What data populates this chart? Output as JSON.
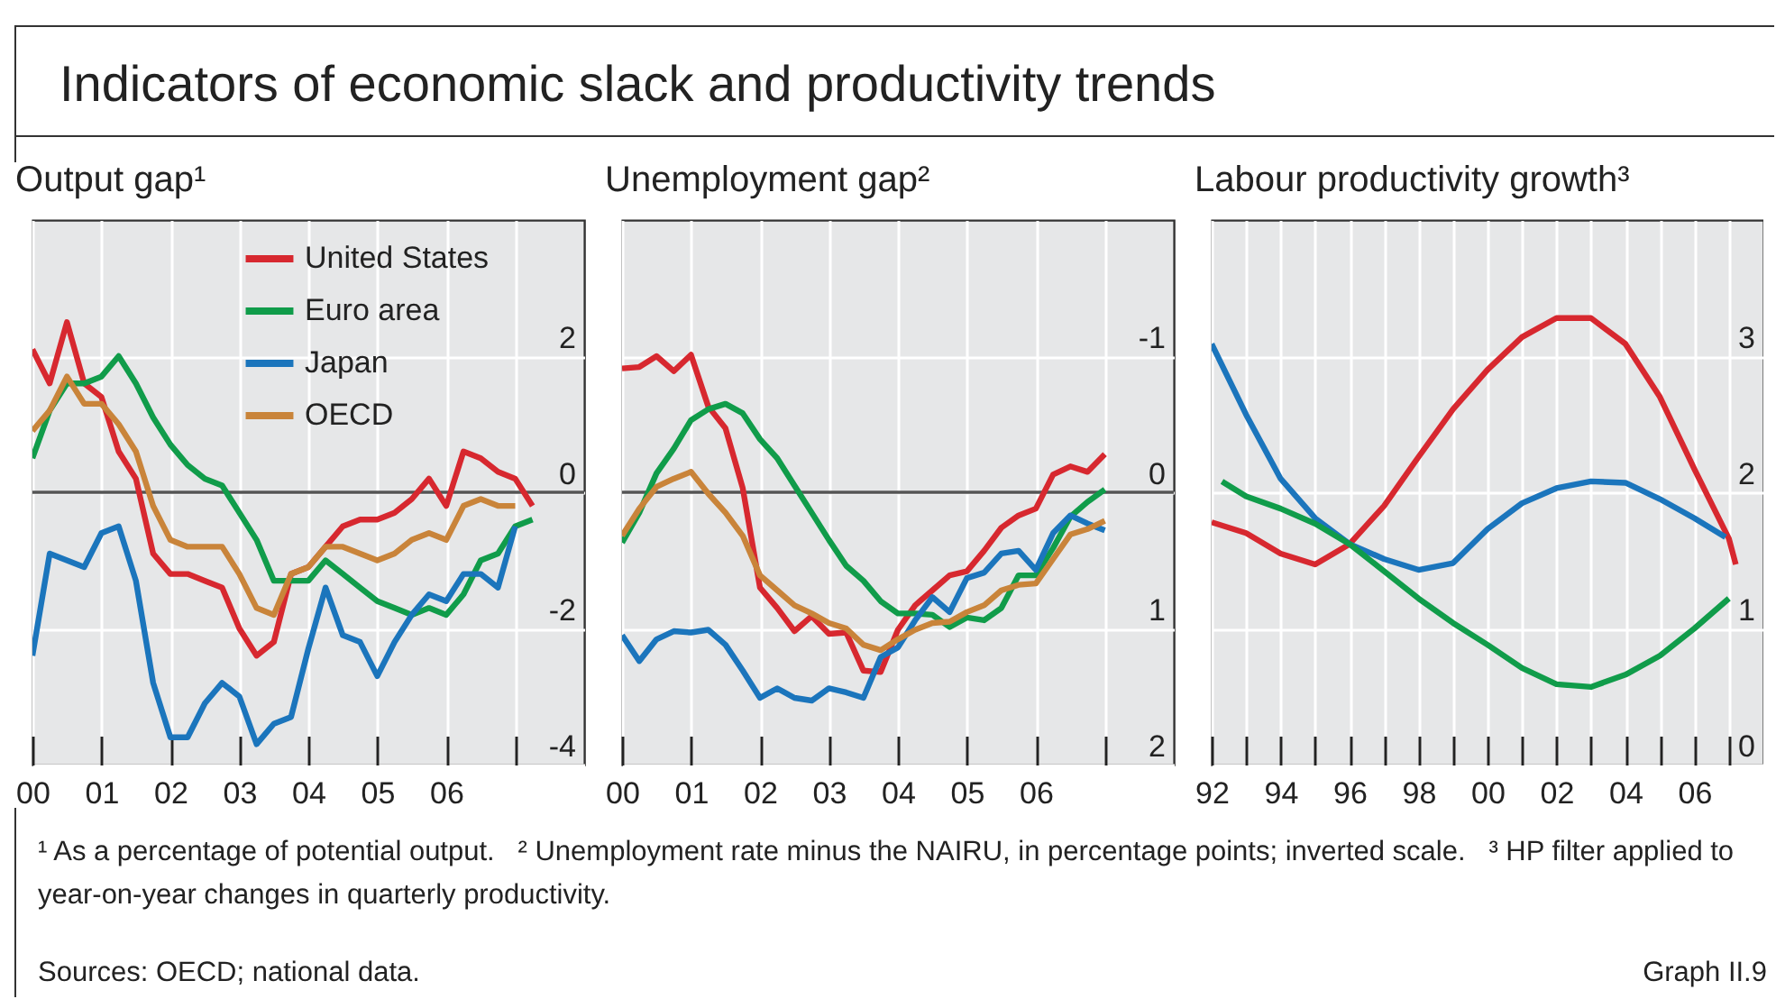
{
  "chart_data": [
    {
      "type": "other",
      "title": "Indicators of economic slack and productivity trends",
      "annotations": [
        "¹ As a percentage of potential output.",
        "² Unemployment rate minus the NAIRU, in percentage points; inverted scale.",
        "³ HP filter applied to year-on-year changes in quarterly productivity.",
        "Sources: OECD; national data.",
        "Graph II.9"
      ]
    },
    {
      "type": "line",
      "title": "Output gap¹",
      "x": [
        2000,
        2000.25,
        2000.5,
        2000.75,
        2001,
        2001.25,
        2001.5,
        2001.75,
        2002,
        2002.25,
        2002.5,
        2002.75,
        2003,
        2003.25,
        2003.5,
        2003.75,
        2004,
        2004.25,
        2004.5,
        2004.75,
        2005,
        2005.25,
        2005.5,
        2005.75,
        2006,
        2006.25,
        2006.5,
        2006.75,
        2007,
        2007.25
      ],
      "series": [
        {
          "name": "United States",
          "color": "#d7282f",
          "values": [
            2.1,
            1.6,
            2.5,
            1.6,
            1.4,
            0.6,
            0.2,
            -0.9,
            -1.2,
            -1.2,
            -1.3,
            -1.4,
            -2.0,
            -2.4,
            -2.2,
            -1.2,
            -1.1,
            -0.8,
            -0.5,
            -0.4,
            -0.4,
            -0.3,
            -0.1,
            0.2,
            -0.2,
            0.6,
            0.5,
            0.3,
            0.2,
            -0.2
          ]
        },
        {
          "name": "Euro area",
          "color": "#109c4a",
          "values": [
            0.5,
            1.2,
            1.6,
            1.6,
            1.7,
            2.0,
            1.6,
            1.1,
            0.7,
            0.4,
            0.2,
            0.1,
            -0.3,
            -0.7,
            -1.3,
            -1.3,
            -1.3,
            -1.0,
            -1.2,
            -1.4,
            -1.6,
            -1.7,
            -1.8,
            -1.7,
            -1.8,
            -1.5,
            -1.0,
            -0.9,
            -0.5,
            -0.4
          ]
        },
        {
          "name": "Japan",
          "color": "#1b75bc",
          "values": [
            -2.4,
            -0.9,
            -1.0,
            -1.1,
            -0.6,
            -0.5,
            -1.3,
            -2.8,
            -3.6,
            -3.6,
            -3.1,
            -2.8,
            -3.0,
            -3.7,
            -3.4,
            -3.3,
            -2.3,
            -1.4,
            -2.1,
            -2.2,
            -2.7,
            -2.2,
            -1.8,
            -1.5,
            -1.6,
            -1.2,
            -1.2,
            -1.4,
            -0.5,
            null
          ]
        },
        {
          "name": "OECD",
          "color": "#c9843a",
          "values": [
            0.9,
            1.2,
            1.7,
            1.3,
            1.3,
            1.0,
            0.6,
            -0.2,
            -0.7,
            -0.8,
            -0.8,
            -0.8,
            -1.2,
            -1.7,
            -1.8,
            -1.2,
            -1.1,
            -0.8,
            -0.8,
            -0.9,
            -1.0,
            -0.9,
            -0.7,
            -0.6,
            -0.7,
            -0.2,
            -0.1,
            -0.2,
            -0.2,
            null
          ]
        }
      ],
      "xlim": [
        2000,
        2008
      ],
      "xticks": [
        {
          "value": 2000,
          "label": "00"
        },
        {
          "value": 2001,
          "label": "01"
        },
        {
          "value": 2002,
          "label": "02"
        },
        {
          "value": 2003,
          "label": "03"
        },
        {
          "value": 2004,
          "label": "04"
        },
        {
          "value": 2005,
          "label": "05"
        },
        {
          "value": 2006,
          "label": "06"
        },
        {
          "value": 2007,
          "label": null
        }
      ],
      "ylim": [
        -4,
        4
      ],
      "yticks": [
        -4,
        -2,
        0,
        2
      ],
      "grid": true,
      "legend": "top right",
      "ref_lines": [
        {
          "axis": "y",
          "value": 0,
          "color": "#555555"
        }
      ]
    },
    {
      "type": "line",
      "title": "Unemployment gap²",
      "x": [
        2000,
        2000.25,
        2000.5,
        2000.75,
        2001,
        2001.25,
        2001.5,
        2001.75,
        2002,
        2002.25,
        2002.5,
        2002.75,
        2003,
        2003.25,
        2003.5,
        2003.75,
        2004,
        2004.25,
        2004.5,
        2004.75,
        2005,
        2005.25,
        2005.5,
        2005.75,
        2006,
        2006.25,
        2006.5,
        2006.75,
        2007
      ],
      "series": [
        {
          "color": "#d7282f",
          "values": [
            -0.91,
            -0.92,
            -1.0,
            -0.89,
            -1.01,
            -0.63,
            -0.47,
            -0.03,
            0.7,
            0.85,
            1.02,
            0.91,
            1.04,
            1.03,
            1.31,
            1.32,
            1.01,
            0.83,
            0.72,
            0.61,
            0.58,
            0.43,
            0.26,
            0.17,
            0.12,
            -0.13,
            -0.19,
            -0.15,
            -0.28
          ]
        },
        {
          "color": "#109c4a",
          "values": [
            0.37,
            0.15,
            -0.14,
            -0.32,
            -0.53,
            -0.61,
            -0.65,
            -0.58,
            -0.39,
            -0.25,
            -0.05,
            0.15,
            0.35,
            0.54,
            0.65,
            0.8,
            0.89,
            0.89,
            0.9,
            0.99,
            0.92,
            0.94,
            0.85,
            0.61,
            0.61,
            0.41,
            0.18,
            0.07,
            -0.02
          ]
        },
        {
          "color": "#1b75bc",
          "values": [
            1.05,
            1.24,
            1.08,
            1.02,
            1.03,
            1.01,
            1.12,
            1.31,
            1.51,
            1.44,
            1.51,
            1.53,
            1.44,
            1.47,
            1.51,
            1.21,
            1.14,
            0.94,
            0.77,
            0.88,
            0.63,
            0.59,
            0.45,
            0.43,
            0.57,
            0.3,
            0.17,
            0.23,
            0.28
          ]
        },
        {
          "color": "#c9843a",
          "values": [
            0.32,
            0.12,
            -0.04,
            -0.1,
            -0.15,
            0.01,
            0.15,
            0.32,
            0.61,
            0.72,
            0.83,
            0.89,
            0.96,
            1.0,
            1.12,
            1.16,
            1.08,
            1.01,
            0.96,
            0.95,
            0.88,
            0.83,
            0.72,
            0.68,
            0.67,
            0.49,
            0.31,
            0.27,
            0.21
          ]
        }
      ],
      "xlim": [
        2000,
        2008
      ],
      "xticks": [
        {
          "value": 2000,
          "label": "00"
        },
        {
          "value": 2001,
          "label": "01"
        },
        {
          "value": 2002,
          "label": "02"
        },
        {
          "value": 2003,
          "label": "03"
        },
        {
          "value": 2004,
          "label": "04"
        },
        {
          "value": 2005,
          "label": "05"
        },
        {
          "value": 2006,
          "label": "06"
        },
        {
          "value": 2007,
          "label": null
        }
      ],
      "ylim": [
        2,
        -2
      ],
      "yticks": [
        -1,
        0,
        1,
        2
      ],
      "grid": true,
      "ref_lines": [
        {
          "axis": "y",
          "value": 0,
          "color": "#555555"
        }
      ]
    },
    {
      "type": "line",
      "title": "Labour productivity growth³",
      "series": [
        {
          "color": "#d7282f",
          "x": [
            1992,
            1993,
            1994,
            1995,
            1996,
            1997,
            1998,
            1999,
            2000,
            2001,
            2002,
            2003,
            2004,
            2005,
            2006,
            2007,
            2007.2
          ],
          "values": [
            1.78,
            1.7,
            1.55,
            1.47,
            1.62,
            1.9,
            2.26,
            2.61,
            2.9,
            3.14,
            3.28,
            3.28,
            3.09,
            2.7,
            2.17,
            1.66,
            1.47
          ]
        },
        {
          "color": "#1b75bc",
          "x": [
            1992,
            1993,
            1994,
            1995,
            1996,
            1997,
            1998,
            1999,
            2000,
            2001,
            2002,
            2003,
            2004,
            2005,
            2006,
            2006.9
          ],
          "values": [
            3.09,
            2.57,
            2.1,
            1.81,
            1.62,
            1.51,
            1.43,
            1.48,
            1.73,
            1.92,
            2.03,
            2.08,
            2.07,
            1.95,
            1.81,
            1.67
          ]
        },
        {
          "color": "#109c4a",
          "x": [
            1992.3,
            1993,
            1994,
            1995,
            1996,
            1997,
            1998,
            1999,
            2000,
            2001,
            2002,
            2003,
            2004,
            2005,
            2006,
            2007
          ],
          "values": [
            2.08,
            1.97,
            1.88,
            1.77,
            1.62,
            1.42,
            1.22,
            1.04,
            0.88,
            0.71,
            0.59,
            0.57,
            0.66,
            0.8,
            1.0,
            1.22
          ]
        }
      ],
      "xlim": [
        1992,
        2008
      ],
      "xticks": [
        {
          "value": 1992,
          "label": "92"
        },
        {
          "value": 1993,
          "label": null
        },
        {
          "value": 1994,
          "label": "94"
        },
        {
          "value": 1995,
          "label": null
        },
        {
          "value": 1996,
          "label": "96"
        },
        {
          "value": 1997,
          "label": null
        },
        {
          "value": 1998,
          "label": "98"
        },
        {
          "value": 1999,
          "label": null
        },
        {
          "value": 2000,
          "label": "00"
        },
        {
          "value": 2001,
          "label": null
        },
        {
          "value": 2002,
          "label": "02"
        },
        {
          "value": 2003,
          "label": null
        },
        {
          "value": 2004,
          "label": "04"
        },
        {
          "value": 2005,
          "label": null
        },
        {
          "value": 2006,
          "label": "06"
        },
        {
          "value": 2007,
          "label": null
        }
      ],
      "ylim": [
        0,
        4
      ],
      "yticks": [
        0,
        1,
        2,
        3
      ],
      "grid": true
    }
  ]
}
